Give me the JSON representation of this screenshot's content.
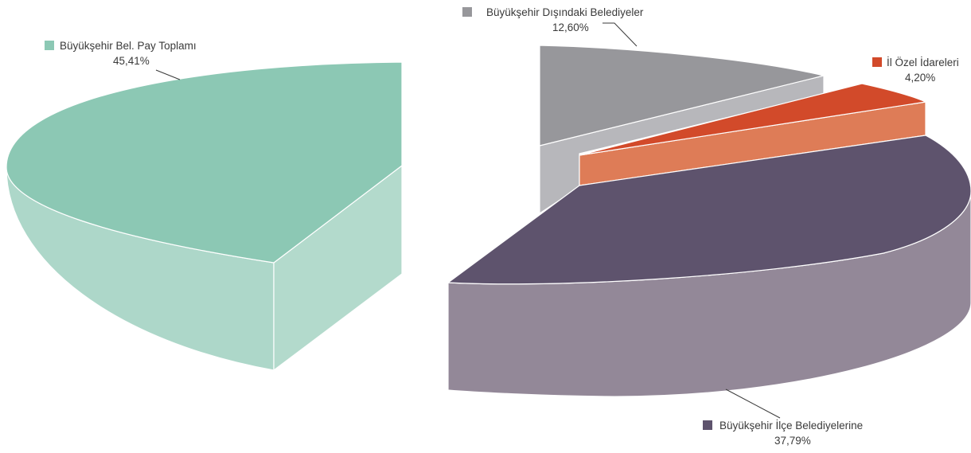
{
  "chart_data": {
    "type": "pie",
    "title": "",
    "slices": [
      {
        "name": "Büyükşehir Bel. Pay Toplamı",
        "label": "45,41%",
        "value": 45.41,
        "color": "#8cc8b4",
        "exploded": true
      },
      {
        "name": "Büyükşehir Dışındaki Belediyeler",
        "label": "12,60%",
        "value": 12.6,
        "color": "#97979b",
        "exploded": false
      },
      {
        "name": "İl Özel İdareleri",
        "label": "4,20%",
        "value": 4.2,
        "color": "#d24a2a",
        "exploded": false
      },
      {
        "name": "Büyükşehir İlçe Belediyelerine",
        "label": "37,79%",
        "value": 37.79,
        "color": "#5e536d",
        "exploded": false
      }
    ],
    "legend": "inline labels with color squares next to each slice"
  }
}
